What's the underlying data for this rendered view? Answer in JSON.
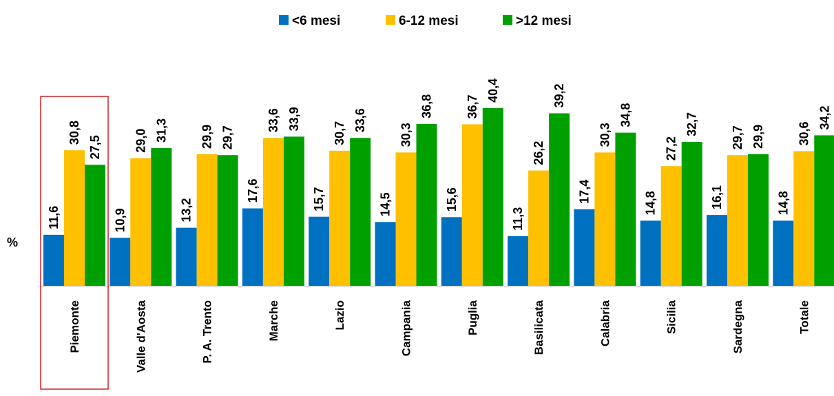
{
  "chart_data": {
    "type": "bar",
    "title": "",
    "xlabel": "",
    "ylabel": "%",
    "ylim": [
      0,
      44
    ],
    "grid": false,
    "legend_position": "top-center",
    "categories": [
      "Piemonte",
      "Valle d'Aosta",
      "P. A. Trento",
      "Marche",
      "Lazio",
      "Campania",
      "Puglia",
      "Basilicata",
      "Calabria",
      "Sicilia",
      "Sardegna",
      "Totale"
    ],
    "highlighted_category": "Piemonte",
    "series": [
      {
        "name": "<6 mesi",
        "color": "#0070C0",
        "values": [
          11.6,
          10.9,
          13.2,
          17.6,
          15.7,
          14.5,
          15.6,
          11.3,
          17.4,
          14.8,
          16.1,
          14.8
        ],
        "labels": [
          "11,6",
          "10,9",
          "13,2",
          "17,6",
          "15,7",
          "14,5",
          "15,6",
          "11,3",
          "17,4",
          "14,8",
          "16,1",
          "14,8"
        ]
      },
      {
        "name": "6-12 mesi",
        "color": "#FFC000",
        "values": [
          30.8,
          29.0,
          29.9,
          33.6,
          30.7,
          30.3,
          36.7,
          26.2,
          30.3,
          27.2,
          29.7,
          30.6
        ],
        "labels": [
          "30,8",
          "29,0",
          "29,9",
          "33,6",
          "30,7",
          "30,3",
          "36,7",
          "26,2",
          "30,3",
          "27,2",
          "29,7",
          "30,6"
        ]
      },
      {
        "name": ">12 mesi",
        "color": "#00A000",
        "values": [
          27.5,
          31.3,
          29.7,
          33.9,
          33.6,
          36.8,
          40.4,
          39.2,
          34.8,
          32.7,
          29.9,
          34.2
        ],
        "labels": [
          "27,5",
          "31,3",
          "29,7",
          "33,9",
          "33,6",
          "36,8",
          "40,4",
          "39,2",
          "34,8",
          "32,7",
          "29,9",
          "34,2"
        ]
      }
    ]
  },
  "colors": {
    "axis": "#BFBFBF",
    "highlight_box": "#C00000"
  }
}
